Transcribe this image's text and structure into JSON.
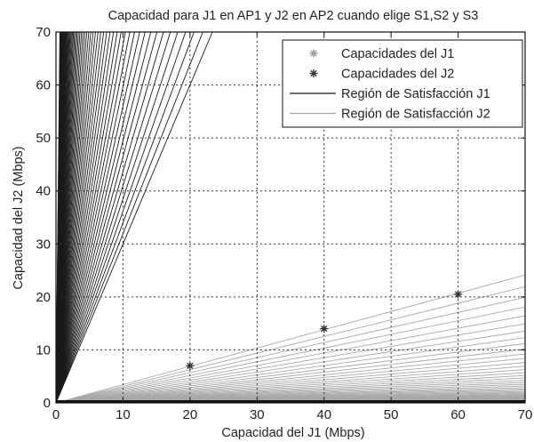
{
  "chart_data": {
    "type": "scatter",
    "title": "Capacidad para J1 en AP1 y J2 en AP2 cuando elige S1,S2 y S3",
    "xlabel": "Capacidad del J1 (Mbps)",
    "ylabel": "Capacidad del J2 (Mbps)",
    "xlim": [
      0,
      70
    ],
    "ylim": [
      0,
      70
    ],
    "xticks": [
      0,
      10,
      20,
      30,
      40,
      50,
      60,
      70
    ],
    "yticks": [
      0,
      10,
      20,
      30,
      40,
      50,
      60,
      70
    ],
    "grid": true,
    "legend_position": "top-right",
    "series": [
      {
        "name": "Capacidades del J1",
        "marker": "*",
        "color": "#9a9a9a",
        "points": [
          [
            20,
            7
          ],
          [
            40,
            14
          ],
          [
            60,
            20.5
          ]
        ]
      },
      {
        "name": "Capacidades del J2",
        "marker": "*",
        "color": "#333333",
        "points": [
          [
            20,
            7
          ],
          [
            40,
            14
          ],
          [
            60,
            20.5
          ]
        ]
      },
      {
        "name": "Región de Satisfacción J1",
        "type": "line-fan",
        "color": "#1a1a1a",
        "origin": [
          0,
          0
        ],
        "slope_range": [
          3.0,
          120
        ],
        "line_count": 60
      },
      {
        "name": "Región de Satisfacción J2",
        "type": "line-fan",
        "color": "#a8a8a8",
        "origin": [
          0,
          0
        ],
        "slope_range": [
          0.005,
          0.345
        ],
        "line_count": 45
      }
    ]
  }
}
